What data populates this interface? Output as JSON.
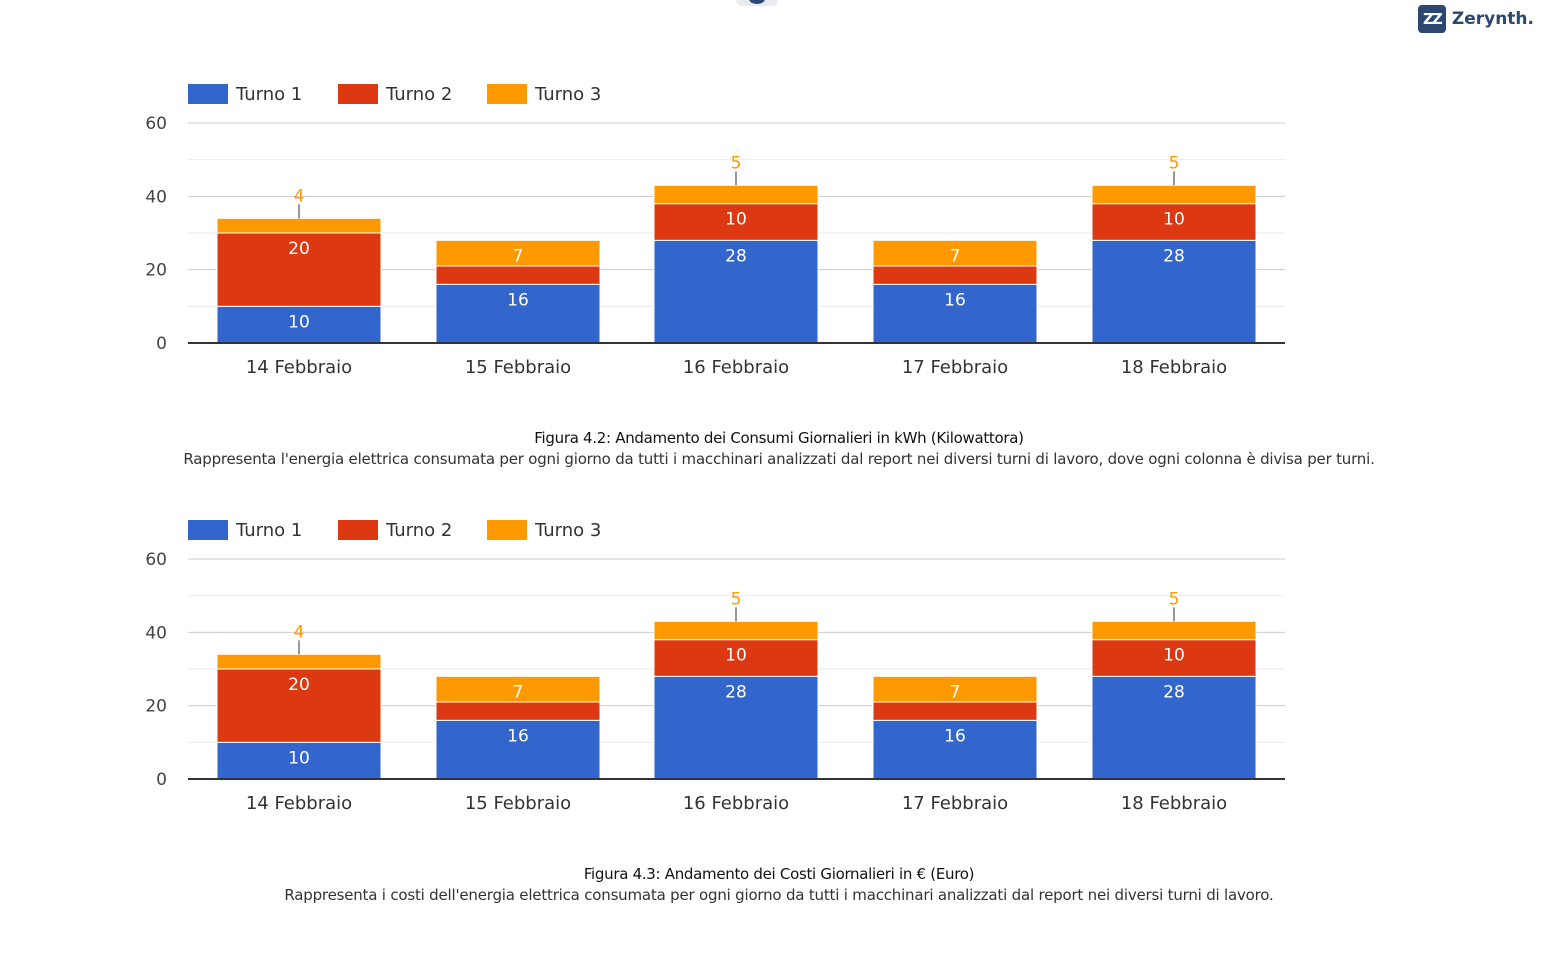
{
  "brand": {
    "name": "Zerynth.",
    "icon": "zerynth-logo-icon"
  },
  "colors": {
    "turno1": "#3366cc",
    "turno2": "#dc3912",
    "turno3": "#ff9900",
    "grid": "#cccccc",
    "axis": "#333333"
  },
  "chart_data": [
    {
      "type": "bar",
      "stacked": true,
      "categories": [
        "14 Febbraio",
        "15 Febbraio",
        "16 Febbraio",
        "17 Febbraio",
        "18 Febbraio"
      ],
      "series": [
        {
          "name": "Turno 1",
          "values": [
            10,
            16,
            28,
            16,
            28
          ]
        },
        {
          "name": "Turno 2",
          "values": [
            20,
            5,
            10,
            5,
            10
          ]
        },
        {
          "name": "Turno 3",
          "values": [
            4,
            7,
            5,
            7,
            5
          ]
        }
      ],
      "ylim": [
        0,
        60
      ],
      "yticks": [
        0,
        20,
        40,
        60
      ],
      "legend": "top-left",
      "grid": true
    },
    {
      "type": "bar",
      "stacked": true,
      "categories": [
        "14 Febbraio",
        "15 Febbraio",
        "16 Febbraio",
        "17 Febbraio",
        "18 Febbraio"
      ],
      "series": [
        {
          "name": "Turno 1",
          "values": [
            10,
            16,
            28,
            16,
            28
          ]
        },
        {
          "name": "Turno 2",
          "values": [
            20,
            5,
            10,
            5,
            10
          ]
        },
        {
          "name": "Turno 3",
          "values": [
            4,
            7,
            5,
            7,
            5
          ]
        }
      ],
      "ylim": [
        0,
        60
      ],
      "yticks": [
        0,
        20,
        40,
        60
      ],
      "legend": "top-left",
      "grid": true
    }
  ],
  "captions": [
    {
      "title": "Figura 4.2: Andamento dei Consumi Giornalieri in kWh (Kilowattora)",
      "description": "Rappresenta l'energia elettrica consumata per ogni giorno da tutti i macchinari analizzati dal report nei diversi turni di lavoro, dove ogni colonna è divisa per turni."
    },
    {
      "title": "Figura 4.3: Andamento dei Costi Giornalieri in € (Euro)",
      "description": "Rappresenta i costi dell'energia elettrica consumata per ogni giorno da tutti i macchinari analizzati dal report nei diversi turni di lavoro."
    }
  ]
}
